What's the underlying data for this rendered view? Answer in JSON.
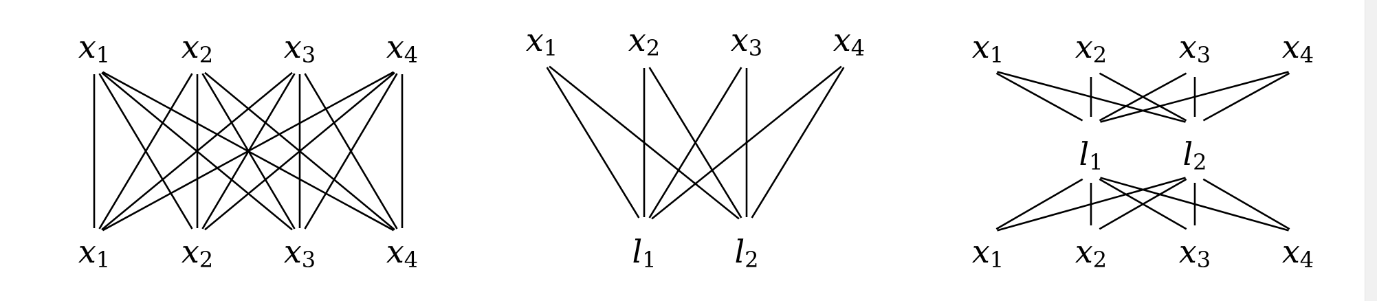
{
  "panels": [
    {
      "id": "complete-bipartite",
      "top_nodes": [
        {
          "base": "x",
          "sub": "1"
        },
        {
          "base": "x",
          "sub": "2"
        },
        {
          "base": "x",
          "sub": "3"
        },
        {
          "base": "x",
          "sub": "4"
        }
      ],
      "middle_nodes": [],
      "bottom_nodes": [
        {
          "base": "x",
          "sub": "1"
        },
        {
          "base": "x",
          "sub": "2"
        },
        {
          "base": "x",
          "sub": "3"
        },
        {
          "base": "x",
          "sub": "4"
        }
      ],
      "edges": [
        [
          "t0",
          "b0"
        ],
        [
          "t0",
          "b1"
        ],
        [
          "t0",
          "b2"
        ],
        [
          "t0",
          "b3"
        ],
        [
          "t1",
          "b0"
        ],
        [
          "t1",
          "b1"
        ],
        [
          "t1",
          "b2"
        ],
        [
          "t1",
          "b3"
        ],
        [
          "t2",
          "b0"
        ],
        [
          "t2",
          "b1"
        ],
        [
          "t2",
          "b2"
        ],
        [
          "t2",
          "b3"
        ],
        [
          "t3",
          "b0"
        ],
        [
          "t3",
          "b1"
        ],
        [
          "t3",
          "b2"
        ],
        [
          "t3",
          "b3"
        ]
      ]
    },
    {
      "id": "two-latent-collapsed",
      "top_nodes": [
        {
          "base": "x",
          "sub": "1"
        },
        {
          "base": "x",
          "sub": "2"
        },
        {
          "base": "x",
          "sub": "3"
        },
        {
          "base": "x",
          "sub": "4"
        }
      ],
      "middle_nodes": [],
      "bottom_nodes": [
        {
          "base": "l",
          "sub": "1"
        },
        {
          "base": "l",
          "sub": "2"
        }
      ],
      "edges": [
        [
          "t0",
          "b0"
        ],
        [
          "t0",
          "b1"
        ],
        [
          "t1",
          "b0"
        ],
        [
          "t1",
          "b1"
        ],
        [
          "t2",
          "b0"
        ],
        [
          "t2",
          "b1"
        ],
        [
          "t3",
          "b0"
        ],
        [
          "t3",
          "b1"
        ]
      ]
    },
    {
      "id": "two-latent-bridge",
      "top_nodes": [
        {
          "base": "x",
          "sub": "1"
        },
        {
          "base": "x",
          "sub": "2"
        },
        {
          "base": "x",
          "sub": "3"
        },
        {
          "base": "x",
          "sub": "4"
        }
      ],
      "middle_nodes": [
        {
          "base": "l",
          "sub": "1"
        },
        {
          "base": "l",
          "sub": "2"
        }
      ],
      "bottom_nodes": [
        {
          "base": "x",
          "sub": "1"
        },
        {
          "base": "x",
          "sub": "2"
        },
        {
          "base": "x",
          "sub": "3"
        },
        {
          "base": "x",
          "sub": "4"
        }
      ],
      "edges": [
        [
          "t0",
          "m0"
        ],
        [
          "t0",
          "m1"
        ],
        [
          "t1",
          "m0"
        ],
        [
          "t1",
          "m1"
        ],
        [
          "t2",
          "m0"
        ],
        [
          "t2",
          "m1"
        ],
        [
          "t3",
          "m0"
        ],
        [
          "t3",
          "m1"
        ],
        [
          "m0",
          "b0"
        ],
        [
          "m0",
          "b1"
        ],
        [
          "m0",
          "b2"
        ],
        [
          "m0",
          "b3"
        ],
        [
          "m1",
          "b0"
        ],
        [
          "m1",
          "b1"
        ],
        [
          "m1",
          "b2"
        ],
        [
          "m1",
          "b3"
        ]
      ]
    }
  ]
}
